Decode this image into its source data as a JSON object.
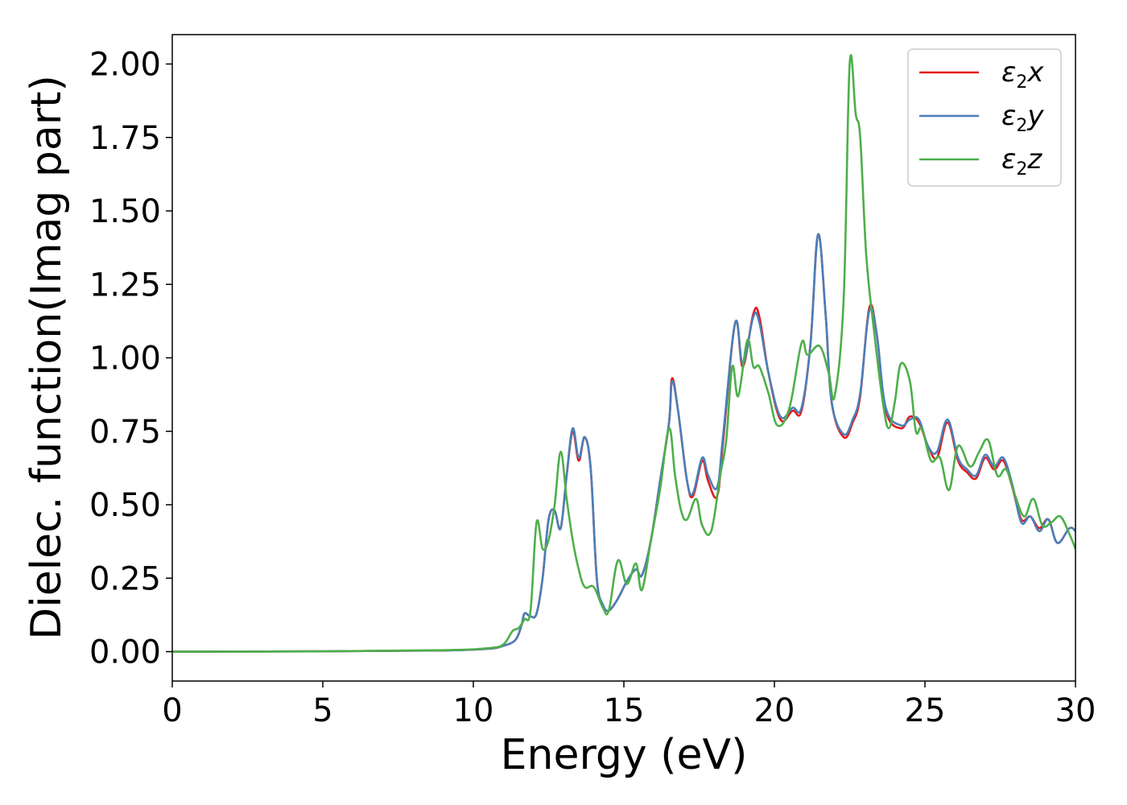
{
  "chart_data": {
    "type": "line",
    "title": "",
    "xlabel": "Energy (eV)",
    "ylabel": "Dielec. function(Imag part)",
    "xlim": [
      0,
      30
    ],
    "ylim": [
      -0.1,
      2.1
    ],
    "xticks": [
      0,
      5,
      10,
      15,
      20,
      25,
      30
    ],
    "xtick_labels": [
      "0",
      "5",
      "10",
      "15",
      "20",
      "25",
      "30"
    ],
    "yticks": [
      0.0,
      0.25,
      0.5,
      0.75,
      1.0,
      1.25,
      1.5,
      1.75,
      2.0
    ],
    "ytick_labels": [
      "0.00",
      "0.25",
      "0.50",
      "0.75",
      "1.00",
      "1.25",
      "1.50",
      "1.75",
      "2.00"
    ],
    "grid": false,
    "legend_position": "top-right",
    "series": [
      {
        "name": "ε2x",
        "legend_main": "ε",
        "legend_sub": "2",
        "legend_var": "x",
        "color": "#e41a1c",
        "points": [
          [
            0,
            0.0
          ],
          [
            5,
            0.001
          ],
          [
            9,
            0.004
          ],
          [
            10.5,
            0.01
          ],
          [
            11,
            0.02
          ],
          [
            11.4,
            0.04
          ],
          [
            11.6,
            0.09
          ],
          [
            11.7,
            0.13
          ],
          [
            11.9,
            0.12
          ],
          [
            12.1,
            0.13
          ],
          [
            12.3,
            0.25
          ],
          [
            12.5,
            0.45
          ],
          [
            12.7,
            0.48
          ],
          [
            12.9,
            0.42
          ],
          [
            13.1,
            0.6
          ],
          [
            13.3,
            0.75
          ],
          [
            13.5,
            0.65
          ],
          [
            13.7,
            0.73
          ],
          [
            13.9,
            0.62
          ],
          [
            14.1,
            0.25
          ],
          [
            14.3,
            0.16
          ],
          [
            14.5,
            0.14
          ],
          [
            14.8,
            0.18
          ],
          [
            15.1,
            0.24
          ],
          [
            15.4,
            0.28
          ],
          [
            15.6,
            0.26
          ],
          [
            15.9,
            0.38
          ],
          [
            16.2,
            0.58
          ],
          [
            16.5,
            0.78
          ],
          [
            16.6,
            0.93
          ],
          [
            16.8,
            0.82
          ],
          [
            17.1,
            0.58
          ],
          [
            17.3,
            0.53
          ],
          [
            17.6,
            0.65
          ],
          [
            17.8,
            0.58
          ],
          [
            18.1,
            0.53
          ],
          [
            18.3,
            0.72
          ],
          [
            18.7,
            1.12
          ],
          [
            18.95,
            0.97
          ],
          [
            19.3,
            1.15
          ],
          [
            19.5,
            1.14
          ],
          [
            19.8,
            0.95
          ],
          [
            20.2,
            0.79
          ],
          [
            20.6,
            0.82
          ],
          [
            20.9,
            0.82
          ],
          [
            21.2,
            1.05
          ],
          [
            21.45,
            1.42
          ],
          [
            21.7,
            1.15
          ],
          [
            21.9,
            0.85
          ],
          [
            22.3,
            0.73
          ],
          [
            22.6,
            0.78
          ],
          [
            22.85,
            0.87
          ],
          [
            23.15,
            1.17
          ],
          [
            23.4,
            1.08
          ],
          [
            23.7,
            0.82
          ],
          [
            24.2,
            0.76
          ],
          [
            24.5,
            0.8
          ],
          [
            24.8,
            0.78
          ],
          [
            25.1,
            0.7
          ],
          [
            25.4,
            0.66
          ],
          [
            25.75,
            0.78
          ],
          [
            26.1,
            0.65
          ],
          [
            26.4,
            0.61
          ],
          [
            26.7,
            0.59
          ],
          [
            27.0,
            0.66
          ],
          [
            27.3,
            0.62
          ],
          [
            27.6,
            0.65
          ],
          [
            27.9,
            0.56
          ],
          [
            28.2,
            0.45
          ],
          [
            28.5,
            0.46
          ],
          [
            28.8,
            0.42
          ],
          [
            29.1,
            0.45
          ],
          [
            29.4,
            0.37
          ],
          [
            29.8,
            0.42
          ],
          [
            30,
            0.41
          ]
        ]
      },
      {
        "name": "ε2y",
        "legend_main": "ε",
        "legend_sub": "2",
        "legend_var": "y",
        "color": "#4a7fb8",
        "points": [
          [
            0,
            0.0
          ],
          [
            5,
            0.001
          ],
          [
            9,
            0.004
          ],
          [
            10.5,
            0.01
          ],
          [
            11,
            0.02
          ],
          [
            11.4,
            0.04
          ],
          [
            11.6,
            0.09
          ],
          [
            11.7,
            0.13
          ],
          [
            11.9,
            0.12
          ],
          [
            12.1,
            0.13
          ],
          [
            12.3,
            0.25
          ],
          [
            12.5,
            0.45
          ],
          [
            12.7,
            0.48
          ],
          [
            12.9,
            0.42
          ],
          [
            13.1,
            0.6
          ],
          [
            13.3,
            0.76
          ],
          [
            13.5,
            0.66
          ],
          [
            13.7,
            0.73
          ],
          [
            13.9,
            0.62
          ],
          [
            14.1,
            0.25
          ],
          [
            14.3,
            0.16
          ],
          [
            14.5,
            0.14
          ],
          [
            14.8,
            0.18
          ],
          [
            15.1,
            0.24
          ],
          [
            15.4,
            0.28
          ],
          [
            15.6,
            0.26
          ],
          [
            15.9,
            0.38
          ],
          [
            16.2,
            0.58
          ],
          [
            16.5,
            0.78
          ],
          [
            16.6,
            0.92
          ],
          [
            16.8,
            0.82
          ],
          [
            17.1,
            0.58
          ],
          [
            17.3,
            0.54
          ],
          [
            17.6,
            0.66
          ],
          [
            17.8,
            0.6
          ],
          [
            18.1,
            0.56
          ],
          [
            18.3,
            0.74
          ],
          [
            18.7,
            1.12
          ],
          [
            18.95,
            0.98
          ],
          [
            19.3,
            1.14
          ],
          [
            19.5,
            1.12
          ],
          [
            19.8,
            0.95
          ],
          [
            20.2,
            0.8
          ],
          [
            20.6,
            0.83
          ],
          [
            20.9,
            0.83
          ],
          [
            21.2,
            1.05
          ],
          [
            21.45,
            1.42
          ],
          [
            21.7,
            1.15
          ],
          [
            21.9,
            0.85
          ],
          [
            22.3,
            0.74
          ],
          [
            22.6,
            0.79
          ],
          [
            22.85,
            0.88
          ],
          [
            23.15,
            1.16
          ],
          [
            23.4,
            1.08
          ],
          [
            23.7,
            0.83
          ],
          [
            24.2,
            0.77
          ],
          [
            24.5,
            0.79
          ],
          [
            24.8,
            0.79
          ],
          [
            25.1,
            0.7
          ],
          [
            25.4,
            0.68
          ],
          [
            25.75,
            0.79
          ],
          [
            26.1,
            0.66
          ],
          [
            26.4,
            0.62
          ],
          [
            26.7,
            0.6
          ],
          [
            27.0,
            0.67
          ],
          [
            27.3,
            0.63
          ],
          [
            27.6,
            0.66
          ],
          [
            27.9,
            0.57
          ],
          [
            28.2,
            0.44
          ],
          [
            28.5,
            0.46
          ],
          [
            28.8,
            0.41
          ],
          [
            29.1,
            0.45
          ],
          [
            29.4,
            0.37
          ],
          [
            29.8,
            0.42
          ],
          [
            30,
            0.41
          ]
        ]
      },
      {
        "name": "ε2z",
        "legend_main": "ε",
        "legend_sub": "2",
        "legend_var": "z",
        "color": "#4daf4a",
        "points": [
          [
            0,
            0.0
          ],
          [
            5,
            0.001
          ],
          [
            9,
            0.005
          ],
          [
            10.5,
            0.012
          ],
          [
            11,
            0.025
          ],
          [
            11.3,
            0.07
          ],
          [
            11.5,
            0.08
          ],
          [
            11.7,
            0.11
          ],
          [
            11.9,
            0.14
          ],
          [
            12.1,
            0.44
          ],
          [
            12.3,
            0.35
          ],
          [
            12.5,
            0.38
          ],
          [
            12.7,
            0.5
          ],
          [
            12.9,
            0.68
          ],
          [
            13.1,
            0.52
          ],
          [
            13.3,
            0.38
          ],
          [
            13.5,
            0.28
          ],
          [
            13.7,
            0.22
          ],
          [
            14.0,
            0.22
          ],
          [
            14.3,
            0.15
          ],
          [
            14.5,
            0.14
          ],
          [
            14.8,
            0.31
          ],
          [
            15.1,
            0.23
          ],
          [
            15.4,
            0.3
          ],
          [
            15.6,
            0.21
          ],
          [
            15.9,
            0.38
          ],
          [
            16.2,
            0.55
          ],
          [
            16.5,
            0.76
          ],
          [
            16.7,
            0.6
          ],
          [
            16.9,
            0.48
          ],
          [
            17.1,
            0.45
          ],
          [
            17.4,
            0.52
          ],
          [
            17.6,
            0.43
          ],
          [
            17.9,
            0.41
          ],
          [
            18.2,
            0.6
          ],
          [
            18.4,
            0.72
          ],
          [
            18.6,
            0.97
          ],
          [
            18.8,
            0.87
          ],
          [
            19.1,
            1.06
          ],
          [
            19.3,
            0.97
          ],
          [
            19.5,
            0.97
          ],
          [
            19.8,
            0.88
          ],
          [
            20.1,
            0.77
          ],
          [
            20.5,
            0.83
          ],
          [
            20.9,
            1.05
          ],
          [
            21.1,
            1.01
          ],
          [
            21.5,
            1.04
          ],
          [
            21.8,
            0.95
          ],
          [
            22.0,
            0.87
          ],
          [
            22.3,
            1.2
          ],
          [
            22.5,
            2.0
          ],
          [
            22.7,
            1.83
          ],
          [
            22.85,
            1.75
          ],
          [
            23.05,
            1.35
          ],
          [
            23.3,
            1.1
          ],
          [
            23.6,
            0.85
          ],
          [
            23.8,
            0.76
          ],
          [
            24.0,
            0.85
          ],
          [
            24.2,
            0.98
          ],
          [
            24.5,
            0.92
          ],
          [
            24.7,
            0.75
          ],
          [
            24.9,
            0.76
          ],
          [
            25.2,
            0.65
          ],
          [
            25.5,
            0.66
          ],
          [
            25.8,
            0.55
          ],
          [
            26.1,
            0.7
          ],
          [
            26.5,
            0.63
          ],
          [
            26.8,
            0.68
          ],
          [
            27.1,
            0.72
          ],
          [
            27.4,
            0.6
          ],
          [
            27.7,
            0.62
          ],
          [
            28.0,
            0.53
          ],
          [
            28.3,
            0.46
          ],
          [
            28.6,
            0.52
          ],
          [
            28.9,
            0.43
          ],
          [
            29.2,
            0.44
          ],
          [
            29.5,
            0.46
          ],
          [
            29.8,
            0.4
          ],
          [
            30,
            0.35
          ]
        ]
      }
    ]
  }
}
